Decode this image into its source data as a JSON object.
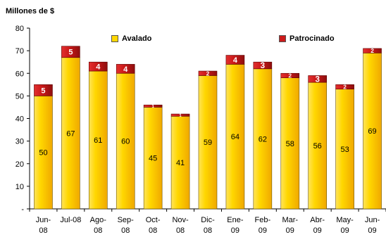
{
  "chart_data": {
    "type": "bar",
    "stacked": true,
    "title": "",
    "ylabel": "Millones de $",
    "xlabel": "",
    "ylim": [
      0,
      80
    ],
    "yticks": [
      "-",
      "10",
      "20",
      "30",
      "40",
      "50",
      "60",
      "70",
      "80"
    ],
    "categories": [
      [
        "Jun-",
        "08"
      ],
      [
        "Jul-08"
      ],
      [
        "Ago-",
        "08"
      ],
      [
        "Sep-",
        "08"
      ],
      [
        "Oct-",
        "08"
      ],
      [
        "Nov-",
        "08"
      ],
      [
        "Dic-",
        "08"
      ],
      [
        "Ene-",
        "09"
      ],
      [
        "Feb-",
        "09"
      ],
      [
        "Mar-",
        "09"
      ],
      [
        "Abr-",
        "09"
      ],
      [
        "May-",
        "09"
      ],
      [
        "Jun-",
        "09"
      ]
    ],
    "series": [
      {
        "name": "Avalado",
        "color": "#FFD700",
        "values": [
          50,
          67,
          61,
          60,
          45,
          41,
          59,
          64,
          62,
          58,
          56,
          53,
          69
        ]
      },
      {
        "name": "Patrocinado",
        "color": "#CC1A1A",
        "values": [
          5,
          5,
          4,
          4,
          1,
          1,
          2,
          4,
          3,
          2,
          3,
          2,
          2
        ]
      }
    ],
    "grid": false,
    "legend_position": "top"
  }
}
